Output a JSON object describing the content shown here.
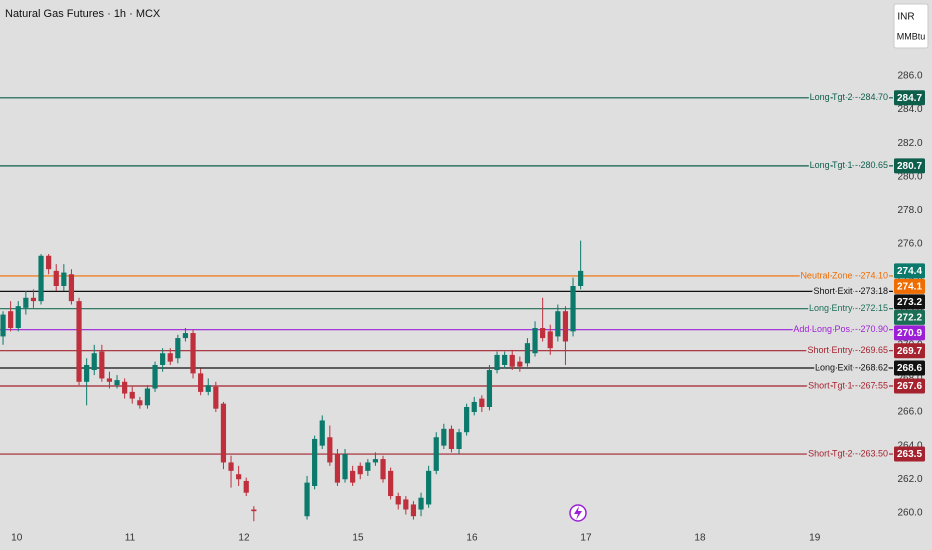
{
  "chart_data": {
    "type": "candlestick",
    "title": "Natural Gas Futures · 1h · MCX",
    "currency": "INR",
    "unit": "MMBtu",
    "up_color": "#0b7a6c",
    "down_color": "#bf2f3c",
    "open": [
      270.5,
      272.0,
      271.0,
      272.2,
      272.8,
      272.6,
      275.3,
      274.4,
      273.5,
      274.2,
      272.6,
      267.8,
      268.5,
      269.6,
      268.0,
      267.6,
      267.8,
      267.2,
      266.7,
      266.4,
      267.4,
      268.8,
      269.5,
      269.2,
      270.4,
      270.7,
      268.3,
      267.2,
      267.5,
      266.5,
      263.0,
      262.3,
      261.9,
      260.2,
      null,
      null,
      null,
      null,
      null,
      null,
      259.8,
      261.6,
      264.0,
      264.5,
      263.5,
      262.0,
      262.5,
      262.8,
      262.5,
      263.0,
      263.2,
      262.5,
      261.0,
      260.8,
      260.5,
      260.2,
      260.5,
      262.5,
      264.0,
      265.0,
      263.8,
      264.8,
      266.0,
      266.8,
      266.3,
      268.5,
      268.8,
      269.4,
      269.0,
      268.9,
      269.5,
      271.0,
      270.8,
      270.5,
      272.0,
      270.8,
      273.5
    ],
    "high": [
      272.0,
      272.6,
      272.6,
      273.2,
      273.3,
      275.4,
      275.4,
      274.8,
      274.8,
      274.5,
      272.8,
      269.2,
      270.0,
      270.0,
      268.4,
      268.2,
      268.0,
      267.5,
      266.9,
      267.6,
      269.0,
      269.8,
      269.8,
      270.6,
      271.0,
      270.9,
      268.6,
      268.0,
      267.8,
      266.6,
      263.4,
      262.8,
      262.1,
      260.4,
      null,
      null,
      null,
      null,
      null,
      null,
      262.2,
      264.6,
      265.8,
      265.2,
      263.8,
      263.8,
      262.8,
      263.0,
      263.2,
      263.6,
      263.4,
      262.7,
      261.2,
      261.0,
      260.7,
      261.2,
      262.8,
      264.8,
      265.3,
      265.2,
      265.0,
      266.5,
      266.9,
      267.0,
      268.8,
      269.6,
      269.6,
      269.7,
      269.3,
      270.4,
      271.4,
      272.8,
      271.2,
      272.4,
      272.3,
      274.0,
      276.2
    ],
    "low": [
      270.0,
      270.8,
      270.8,
      271.8,
      272.2,
      272.4,
      274.2,
      273.2,
      273.2,
      272.4,
      267.6,
      266.4,
      268.2,
      267.8,
      267.4,
      267.4,
      266.8,
      266.5,
      266.2,
      266.2,
      267.2,
      268.4,
      268.8,
      268.9,
      270.2,
      268.0,
      267.0,
      267.0,
      266.0,
      262.6,
      261.5,
      261.6,
      261.0,
      259.5,
      null,
      null,
      null,
      null,
      null,
      null,
      259.6,
      261.4,
      263.8,
      262.8,
      261.6,
      261.8,
      261.6,
      262.0,
      262.2,
      262.8,
      261.8,
      260.8,
      260.2,
      259.9,
      259.6,
      259.8,
      260.3,
      262.3,
      263.8,
      263.6,
      263.5,
      264.6,
      265.8,
      266.0,
      266.1,
      268.3,
      268.6,
      268.5,
      268.4,
      268.7,
      269.3,
      270.2,
      269.4,
      270.2,
      268.8,
      270.5,
      273.3
    ],
    "close": [
      271.8,
      271.0,
      272.3,
      272.8,
      272.6,
      275.3,
      274.5,
      273.5,
      274.3,
      272.6,
      267.8,
      268.8,
      269.5,
      268.0,
      267.8,
      267.9,
      267.1,
      266.8,
      266.4,
      267.4,
      268.8,
      269.5,
      269.0,
      270.4,
      270.7,
      268.3,
      267.2,
      267.6,
      266.2,
      263.0,
      262.5,
      262.0,
      261.2,
      260.1,
      null,
      null,
      null,
      null,
      null,
      null,
      261.8,
      264.4,
      265.5,
      263.0,
      261.8,
      263.5,
      261.8,
      262.3,
      263.0,
      263.2,
      262.0,
      261.0,
      260.5,
      260.2,
      259.8,
      260.9,
      262.5,
      264.5,
      265.0,
      263.8,
      264.8,
      266.3,
      266.6,
      266.3,
      268.5,
      269.4,
      269.4,
      268.7,
      268.7,
      270.1,
      271.0,
      270.4,
      269.8,
      272.0,
      270.2,
      273.5,
      274.4
    ],
    "last_value_label": "274.4",
    "levels": [
      {
        "name": "Long Tgt 2 - 284.70",
        "value": 284.7,
        "value_label": "284.7",
        "color": "#0e5e4c"
      },
      {
        "name": "Long Tgt 1 - 280.65",
        "value": 280.65,
        "value_label": "280.7",
        "color": "#0e5e4c"
      },
      {
        "name": "Neutral Zone - 274.10",
        "value": 274.1,
        "value_label": "274.1",
        "color": "#ef6c00"
      },
      {
        "name": "Short Exit - 273.18",
        "value": 273.18,
        "value_label": "273.2",
        "color": "#111111"
      },
      {
        "name": "Long Entry - 272.15",
        "value": 272.15,
        "value_label": "272.2",
        "color": "#1b6e56"
      },
      {
        "name": "Add Long Pos. - 270.90",
        "value": 270.9,
        "value_label": "270.9",
        "color": "#9c1fd6"
      },
      {
        "name": "Short Entry - 269.65",
        "value": 269.65,
        "value_label": "269.7",
        "color": "#a5232f"
      },
      {
        "name": "Long Exit - 268.62",
        "value": 268.62,
        "value_label": "268.6",
        "color": "#111111"
      },
      {
        "name": "Short Tgt 1 - 267.55",
        "value": 267.55,
        "value_label": "267.6",
        "color": "#a5232f"
      },
      {
        "name": "Short Tgt 2 - 263.50",
        "value": 263.5,
        "value_label": "263.5",
        "color": "#a5232f"
      }
    ],
    "xlim": [
      -0.4,
      117.1
    ],
    "xticks": [
      {
        "value": 1.8,
        "label": "10"
      },
      {
        "value": 16.7,
        "label": "11"
      },
      {
        "value": 31.7,
        "label": "12"
      },
      {
        "value": 46.7,
        "label": "15"
      },
      {
        "value": 61.7,
        "label": "16"
      },
      {
        "value": 76.7,
        "label": "17"
      },
      {
        "value": 91.7,
        "label": "18"
      },
      {
        "value": 106.8,
        "label": "19"
      }
    ],
    "ylim": [
      258.98,
      290.52
    ],
    "yticks": [
      {
        "value": 260,
        "label": "260.0"
      },
      {
        "value": 262,
        "label": "262.0"
      },
      {
        "value": 264,
        "label": "264.0"
      },
      {
        "value": 266,
        "label": "266.0"
      },
      {
        "value": 268,
        "label": "268.0"
      },
      {
        "value": 270,
        "label": "270.0"
      },
      {
        "value": 272,
        "label": "272.0"
      },
      {
        "value": 274,
        "label": "274.0"
      },
      {
        "value": 276,
        "label": "276.0"
      },
      {
        "value": 278,
        "label": "278.0"
      },
      {
        "value": 280,
        "label": "280.0"
      },
      {
        "value": 282,
        "label": "282.0"
      },
      {
        "value": 284,
        "label": "284.0"
      },
      {
        "value": 286,
        "label": "286.0"
      }
    ]
  }
}
